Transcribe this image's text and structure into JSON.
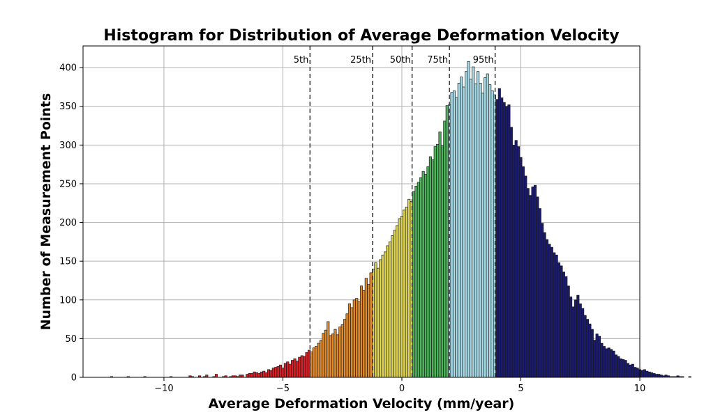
{
  "chart_data": {
    "type": "bar",
    "title": "Histogram for Distribution of Average Deformation Velocity",
    "xlabel": "Average Deformation Velocity (mm/year)",
    "ylabel": "Number of Measurement Points",
    "xlim": [
      -13.4,
      10.0
    ],
    "ylim": [
      0,
      428
    ],
    "xticks": [
      -10,
      -5,
      0,
      5,
      10
    ],
    "xtick_labels": [
      "−10",
      "−5",
      "0",
      "5",
      "10"
    ],
    "yticks": [
      0,
      50,
      100,
      150,
      200,
      250,
      300,
      350,
      400
    ],
    "grid": true,
    "bin_start": -12.25,
    "bin_width": 0.1,
    "counts": [
      1,
      0,
      0,
      0,
      0,
      0,
      0,
      1,
      0,
      0,
      0,
      0,
      0,
      0,
      1,
      0,
      0,
      0,
      0,
      0,
      0,
      0,
      0,
      0,
      0,
      1,
      0,
      0,
      0,
      0,
      0,
      0,
      0,
      2,
      1,
      0,
      0,
      2,
      0,
      1,
      3,
      0,
      0,
      1,
      4,
      0,
      0,
      1,
      2,
      0,
      1,
      2,
      2,
      1,
      3,
      3,
      0,
      4,
      5,
      5,
      7,
      6,
      5,
      7,
      8,
      6,
      10,
      9,
      12,
      13,
      14,
      16,
      12,
      18,
      20,
      17,
      22,
      24,
      21,
      26,
      28,
      27,
      32,
      35,
      33,
      38,
      40,
      44,
      48,
      57,
      61,
      72,
      54,
      56,
      62,
      55,
      65,
      68,
      75,
      82,
      95,
      90,
      100,
      102,
      98,
      118,
      112,
      128,
      120,
      135,
      140,
      148,
      141,
      152,
      158,
      162,
      170,
      175,
      183,
      190,
      196,
      205,
      208,
      216,
      220,
      230,
      227,
      240,
      247,
      252,
      258,
      266,
      262,
      272,
      285,
      281,
      298,
      301,
      317,
      299,
      331,
      351,
      352,
      368,
      370,
      361,
      380,
      388,
      375,
      395,
      408,
      385,
      401,
      379,
      395,
      380,
      367,
      387,
      392,
      378,
      370,
      365,
      359,
      373,
      361,
      355,
      350,
      352,
      323,
      300,
      306,
      298,
      284,
      272,
      260,
      244,
      235,
      246,
      248,
      233,
      218,
      199,
      187,
      178,
      172,
      168,
      161,
      158,
      148,
      144,
      136,
      130,
      118,
      104,
      91,
      100,
      106,
      95,
      89,
      80,
      75,
      69,
      62,
      48,
      56,
      53,
      44,
      40,
      37,
      38,
      36,
      34,
      29,
      27,
      24,
      23,
      22,
      18,
      16,
      17,
      13,
      12,
      10,
      9,
      10,
      8,
      7,
      6,
      5,
      4,
      4,
      3,
      2,
      3,
      2,
      1,
      1,
      1,
      2,
      1,
      1,
      0,
      0,
      1,
      0,
      0,
      0,
      0,
      0,
      0,
      0,
      0,
      0,
      0,
      0
    ],
    "percentiles": [
      {
        "label": "5th",
        "value": -3.86
      },
      {
        "label": "25th",
        "value": -1.23
      },
      {
        "label": "50th",
        "value": 0.43
      },
      {
        "label": "75th",
        "value": 2.0
      },
      {
        "label": "95th",
        "value": 3.92
      }
    ],
    "band_colors": [
      "#d61f26",
      "#e08a2a",
      "#e0d54f",
      "#4cb35a",
      "#a8dbe8",
      "#1a1a6e"
    ],
    "edge_color": "#1a1a1a",
    "grid_color": "#b0b0b0"
  }
}
